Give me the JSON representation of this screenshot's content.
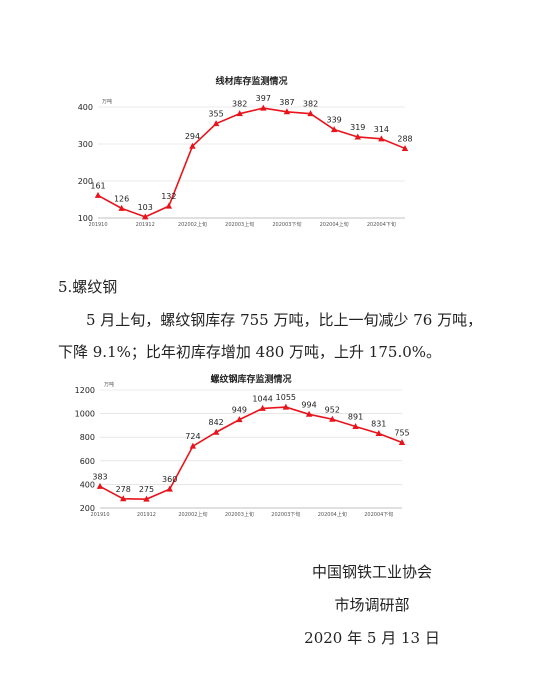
{
  "chart_data": [
    {
      "type": "line",
      "title": "线材库存监测情况",
      "unit": "万吨",
      "color": "#e8141b",
      "categories": [
        "201910",
        null,
        "201912",
        null,
        "202002上旬",
        null,
        "202003上旬",
        null,
        "202003下旬",
        null,
        "202004上旬",
        null,
        "202004下旬",
        null
      ],
      "values": [
        161,
        126,
        103,
        132,
        294,
        355,
        382,
        397,
        387,
        382,
        339,
        319,
        314,
        288
      ],
      "ylim": [
        100,
        400
      ],
      "yticks": [
        100,
        200,
        300,
        400
      ],
      "grid": true
    },
    {
      "type": "line",
      "title": "螺纹钢库存监测情况",
      "unit": "万吨",
      "color": "#e8141b",
      "categories": [
        "201910",
        null,
        "201912",
        null,
        "202002上旬",
        null,
        "202003上旬",
        null,
        "202003下旬",
        null,
        "202004上旬",
        null,
        "202004下旬",
        null
      ],
      "values": [
        383,
        278,
        275,
        360,
        724,
        842,
        949,
        1044,
        1055,
        994,
        952,
        891,
        831,
        755
      ],
      "ylim": [
        200,
        1200
      ],
      "yticks": [
        200,
        400,
        600,
        800,
        1000,
        1200
      ],
      "grid": true
    }
  ],
  "document": {
    "heading": "5.螺纹钢",
    "paragraph": [
      "5 月上旬，螺纹钢库存 755 万吨，比上一旬减少 76 万吨，",
      "下降 9.1%；比年初库存增加 480 万吨，上升 175.0%。"
    ],
    "signature": [
      "中国钢铁工业协会",
      "市场调研部",
      "2020 年 5 月 13 日"
    ]
  }
}
